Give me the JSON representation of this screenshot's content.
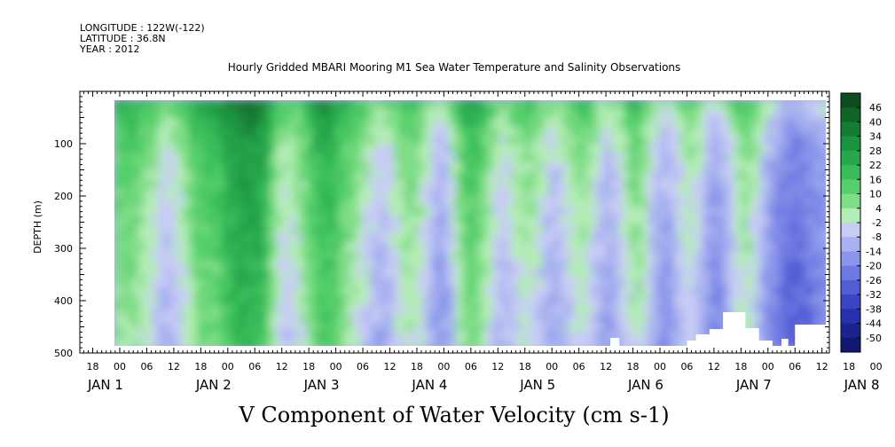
{
  "header": {
    "longitude": "LONGITUDE : 122W(-122)",
    "latitude": "LATITUDE : 36.8N",
    "year": "YEAR : 2012"
  },
  "chart_data": {
    "type": "heatmap",
    "title": "Hourly Gridded MBARI Mooring M1 Sea Water Temperature and Salinity Observations",
    "xlabel": "V Component of Water Velocity (cm s-1)",
    "ylabel": "DEPTH (m)",
    "ylim": [
      500,
      0
    ],
    "y_ticks": [
      100,
      200,
      300,
      400,
      500
    ],
    "x_hour_ticks": [
      "18",
      "00",
      "06",
      "12",
      "18",
      "00",
      "06",
      "12",
      "18",
      "00",
      "06",
      "12",
      "18",
      "00",
      "06",
      "12",
      "18",
      "00",
      "06",
      "12",
      "18",
      "00",
      "06",
      "12",
      "18",
      "00",
      "06",
      "12",
      "18",
      "00",
      "06",
      "12"
    ],
    "x_date_labels": [
      "JAN 1",
      "JAN 2",
      "JAN 3",
      "JAN 4",
      "JAN 5",
      "JAN 6",
      "JAN 7",
      "JAN 8"
    ],
    "colorbar": {
      "levels": [
        "46",
        "40",
        "34",
        "28",
        "22",
        "16",
        "10",
        "4",
        "-2",
        "-8",
        "-14",
        "-20",
        "-26",
        "-32",
        "-38",
        "-44",
        "-50"
      ],
      "colors": [
        "#0b4d1e",
        "#0f6428",
        "#157c33",
        "#1b933f",
        "#27a84c",
        "#39bd5a",
        "#55cf6a",
        "#7fdd87",
        "#b3ecb6",
        "#c7ccf5",
        "#a9b2f0",
        "#8b96ea",
        "#6f79e2",
        "#535dd6",
        "#3a44c6",
        "#2731ad",
        "#1a248f",
        "#111870"
      ]
    },
    "x_range": [
      "JAN 1 00",
      "JAN 8 12"
    ],
    "depth_range": [
      20,
      490
    ],
    "colorscale": "diverging: negative blue, positive green",
    "pattern": "alternating green (northward) and blue (southward) vertical bands; strongest green near surface; deeper water mostly blue after JAN 4; no data (white) near bottom around JAN 5-6"
  }
}
